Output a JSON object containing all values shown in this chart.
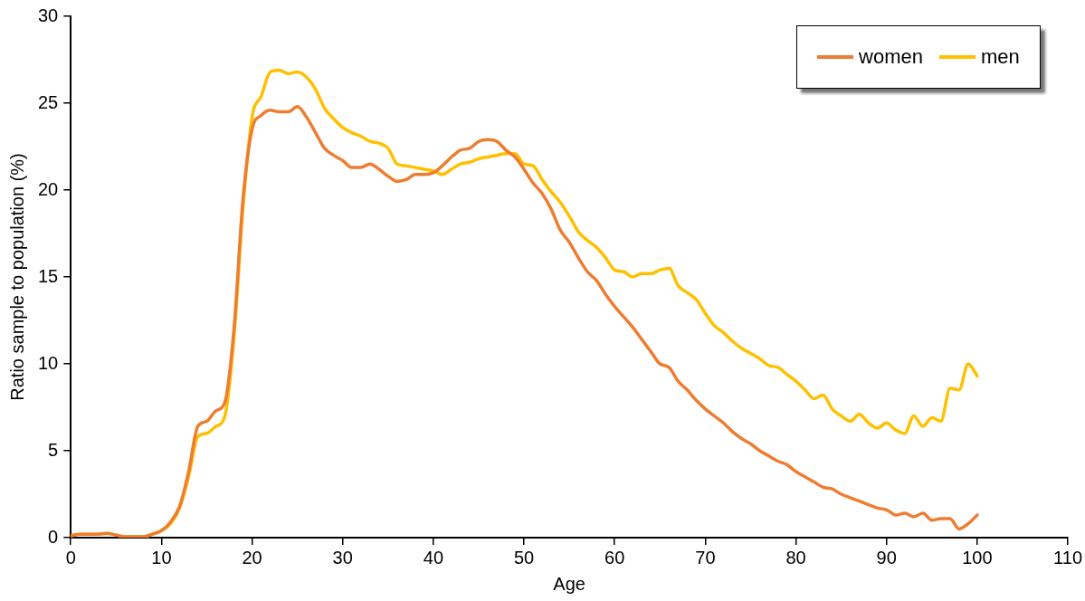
{
  "chart_data": {
    "type": "line",
    "xlabel": "Age",
    "ylabel": "Ratio sample to population (%)",
    "x": [
      0,
      1,
      2,
      3,
      4,
      5,
      6,
      7,
      8,
      9,
      10,
      11,
      12,
      13,
      14,
      15,
      16,
      17,
      18,
      19,
      20,
      21,
      22,
      23,
      24,
      25,
      26,
      27,
      28,
      29,
      30,
      31,
      32,
      33,
      34,
      35,
      36,
      37,
      38,
      39,
      40,
      41,
      42,
      43,
      44,
      45,
      46,
      47,
      48,
      49,
      50,
      51,
      52,
      53,
      54,
      55,
      56,
      57,
      58,
      59,
      60,
      61,
      62,
      63,
      64,
      65,
      66,
      67,
      68,
      69,
      70,
      71,
      72,
      73,
      74,
      75,
      76,
      77,
      78,
      79,
      80,
      81,
      82,
      83,
      84,
      85,
      86,
      87,
      88,
      89,
      90,
      91,
      92,
      93,
      94,
      95,
      96,
      97,
      98,
      99,
      100
    ],
    "series": [
      {
        "name": "women",
        "color": "#ed7d31",
        "values": [
          0.1,
          0.2,
          0.2,
          0.2,
          0.25,
          0.15,
          0.05,
          0.05,
          0.05,
          0.2,
          0.4,
          0.9,
          1.8,
          3.8,
          6.4,
          6.7,
          7.3,
          7.8,
          12,
          19.5,
          23.5,
          24.3,
          24.6,
          24.5,
          24.5,
          24.8,
          24.2,
          23.3,
          22.4,
          22,
          21.7,
          21.3,
          21.3,
          21.5,
          21.2,
          20.8,
          20.5,
          20.6,
          20.9,
          20.9,
          21,
          21.4,
          21.9,
          22.3,
          22.4,
          22.8,
          22.9,
          22.8,
          22.3,
          21.9,
          21.2,
          20.4,
          19.8,
          18.9,
          17.7,
          17,
          16.1,
          15.3,
          14.8,
          14,
          13.3,
          12.7,
          12.1,
          11.4,
          10.7,
          10,
          9.8,
          9,
          8.5,
          7.9,
          7.4,
          7,
          6.6,
          6.1,
          5.7,
          5.4,
          5,
          4.7,
          4.4,
          4.2,
          3.8,
          3.5,
          3.2,
          2.9,
          2.8,
          2.5,
          2.3,
          2.1,
          1.9,
          1.7,
          1.6,
          1.3,
          1.4,
          1.2,
          1.4,
          1,
          1.1,
          1.1,
          0.5,
          0.8,
          1.3
        ]
      },
      {
        "name": "men",
        "color": "#ffc000",
        "values": [
          0.1,
          0.2,
          0.2,
          0.2,
          0.25,
          0.15,
          0.05,
          0.05,
          0.05,
          0.2,
          0.4,
          0.8,
          1.7,
          3.5,
          5.8,
          6,
          6.4,
          7,
          11.5,
          19,
          24.2,
          25.4,
          26.8,
          26.9,
          26.7,
          26.8,
          26.5,
          25.8,
          24.7,
          24.1,
          23.6,
          23.3,
          23.1,
          22.8,
          22.7,
          22.4,
          21.5,
          21.4,
          21.3,
          21.2,
          21.1,
          20.9,
          21.2,
          21.5,
          21.6,
          21.8,
          21.9,
          22,
          22.1,
          22.1,
          21.5,
          21.4,
          20.6,
          19.9,
          19.3,
          18.5,
          17.6,
          17.1,
          16.7,
          16.1,
          15.4,
          15.3,
          15,
          15.2,
          15.2,
          15.4,
          15.5,
          14.5,
          14.1,
          13.7,
          12.9,
          12.2,
          11.8,
          11.3,
          10.9,
          10.6,
          10.3,
          9.9,
          9.8,
          9.4,
          9,
          8.5,
          8,
          8.2,
          7.4,
          7,
          6.7,
          7.1,
          6.6,
          6.3,
          6.6,
          6.2,
          6,
          7,
          6.4,
          6.9,
          6.7,
          8.6,
          8.5,
          10,
          9.3
        ]
      }
    ],
    "xlim": [
      0,
      110
    ],
    "xticks": [
      0,
      10,
      20,
      30,
      40,
      50,
      60,
      70,
      80,
      90,
      100,
      110
    ],
    "ylim": [
      0,
      30
    ],
    "yticks": [
      0,
      5,
      10,
      15,
      20,
      25,
      30
    ],
    "grid": false,
    "legend": "top right",
    "marker": "none",
    "line_style": "solid"
  }
}
